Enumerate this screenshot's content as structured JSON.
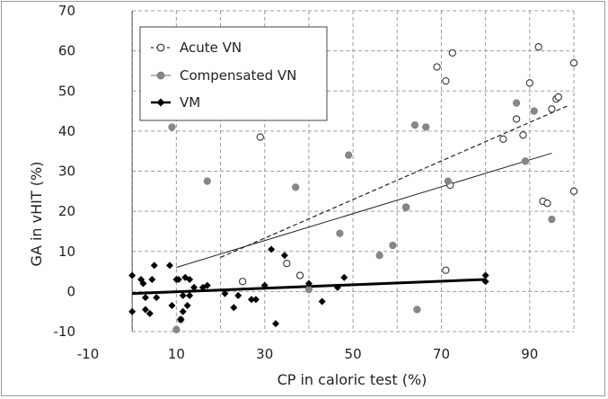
{
  "chart_data": {
    "type": "scatter",
    "xlabel": "CP in caloric test (%)",
    "ylabel": "GA in vHIT (%)",
    "xlim": [
      -10,
      100
    ],
    "ylim": [
      -10,
      70
    ],
    "xticks": [
      -10,
      10,
      30,
      50,
      70,
      90
    ],
    "yticks": [
      -10,
      0,
      10,
      20,
      30,
      40,
      50,
      60,
      70
    ],
    "grid": true,
    "legend_position": "top-left",
    "series": [
      {
        "name": "Acute VN",
        "marker": "open-circle",
        "color": "#333333",
        "trendline": {
          "style": "dashed",
          "x": [
            20,
            99
          ],
          "y": [
            8.5,
            46.5
          ]
        },
        "points": [
          [
            25,
            2.5
          ],
          [
            29,
            38.5
          ],
          [
            35,
            7
          ],
          [
            38,
            4
          ],
          [
            62,
            21
          ],
          [
            69,
            56
          ],
          [
            71,
            52.5
          ],
          [
            71,
            5.3
          ],
          [
            72,
            26.5
          ],
          [
            72.5,
            59.5
          ],
          [
            84,
            38
          ],
          [
            87,
            43
          ],
          [
            88.5,
            39
          ],
          [
            90,
            52
          ],
          [
            92,
            61
          ],
          [
            93,
            22.5
          ],
          [
            94,
            22
          ],
          [
            95,
            45.5
          ],
          [
            96,
            48
          ],
          [
            96.5,
            48.5
          ],
          [
            100,
            25
          ],
          [
            100,
            57
          ]
        ]
      },
      {
        "name": "Compensated VN",
        "marker": "filled-circle",
        "color": "#888888",
        "trendline": {
          "style": "solid",
          "x": [
            10,
            95
          ],
          "y": [
            6,
            34.5
          ]
        },
        "points": [
          [
            9,
            41
          ],
          [
            10,
            -9.5
          ],
          [
            11,
            -7
          ],
          [
            17,
            27.5
          ],
          [
            37,
            26
          ],
          [
            40,
            0.5
          ],
          [
            47,
            14.5
          ],
          [
            49,
            34
          ],
          [
            56,
            9
          ],
          [
            59,
            11.5
          ],
          [
            62,
            21
          ],
          [
            64,
            41.5
          ],
          [
            64.5,
            -4.5
          ],
          [
            66.5,
            41
          ],
          [
            71.5,
            27.5
          ],
          [
            87,
            47
          ],
          [
            89,
            32.5
          ],
          [
            91,
            45
          ],
          [
            95,
            18
          ]
        ]
      },
      {
        "name": "VM",
        "marker": "filled-diamond",
        "color": "#000000",
        "trendline": {
          "style": "solid-thick",
          "x": [
            0,
            80
          ],
          "y": [
            -0.5,
            3
          ]
        },
        "points": [
          [
            0,
            -5
          ],
          [
            0,
            4
          ],
          [
            2,
            3
          ],
          [
            2.5,
            2
          ],
          [
            3,
            -1.5
          ],
          [
            3,
            -4.5
          ],
          [
            4,
            -5.5
          ],
          [
            4.5,
            3
          ],
          [
            5,
            6.5
          ],
          [
            5.5,
            -1.5
          ],
          [
            8.5,
            6.5
          ],
          [
            9,
            -3.5
          ],
          [
            10,
            3
          ],
          [
            10.5,
            3
          ],
          [
            11,
            -7
          ],
          [
            11.5,
            -1
          ],
          [
            11.5,
            -5
          ],
          [
            12,
            3.5
          ],
          [
            12.5,
            -3.5
          ],
          [
            13,
            3
          ],
          [
            13,
            -1
          ],
          [
            14,
            1
          ],
          [
            16,
            1
          ],
          [
            17,
            1.5
          ],
          [
            21,
            -0.5
          ],
          [
            23,
            -4
          ],
          [
            24,
            -1
          ],
          [
            27,
            -2
          ],
          [
            28,
            -2
          ],
          [
            30,
            1.5
          ],
          [
            31.5,
            10.5
          ],
          [
            32.5,
            -8
          ],
          [
            34.5,
            9
          ],
          [
            40,
            2
          ],
          [
            43,
            -2.5
          ],
          [
            46.5,
            1
          ],
          [
            48,
            3.5
          ],
          [
            80,
            4
          ],
          [
            80,
            2.5
          ]
        ]
      }
    ]
  }
}
